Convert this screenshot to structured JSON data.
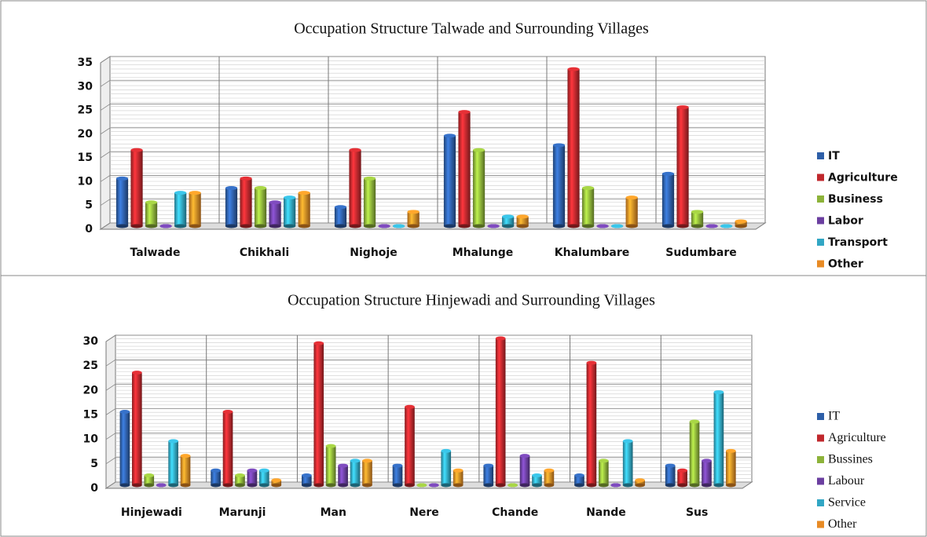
{
  "chart_data": [
    {
      "type": "bar",
      "title": "Occupation Structure Talwade and Surrounding Villages",
      "categories": [
        "Talwade",
        "Chikhali",
        "Nighoje",
        "Mhalunge",
        "Khalumbare",
        "Sudumbare"
      ],
      "series": [
        {
          "name": "IT",
          "color": "#2e5fa8",
          "values": [
            10,
            8,
            4,
            19,
            17,
            11
          ]
        },
        {
          "name": "Agriculture",
          "color": "#c0282d",
          "values": [
            16,
            10,
            16,
            24,
            33,
            25
          ]
        },
        {
          "name": "Business",
          "color": "#8db33a",
          "values": [
            5,
            8,
            10,
            16,
            8,
            3
          ]
        },
        {
          "name": "Labor",
          "color": "#6b3fa0",
          "values": [
            0,
            5,
            0,
            0,
            0,
            0
          ]
        },
        {
          "name": "Transport",
          "color": "#31a6c4",
          "values": [
            7,
            6,
            0,
            2,
            0,
            0
          ]
        },
        {
          "name": "Other",
          "color": "#e88b25",
          "values": [
            7,
            7,
            3,
            2,
            6,
            1
          ]
        }
      ],
      "ylim": [
        0,
        35
      ],
      "yticks": [
        0,
        5,
        10,
        15,
        20,
        25,
        30,
        35
      ],
      "grid": true,
      "legend": "right"
    },
    {
      "type": "bar",
      "title": "Occupation Structure Hinjewadi and Surrounding Villages",
      "categories": [
        "Hinjewadi",
        "Marunji",
        "Man",
        "Nere",
        "Chande",
        "Nande",
        "Sus"
      ],
      "series": [
        {
          "name": "IT",
          "color": "#2e5fa8",
          "values": [
            15,
            3,
            2,
            4,
            4,
            2,
            4
          ]
        },
        {
          "name": "Agriculture",
          "color": "#c0282d",
          "values": [
            23,
            15,
            29,
            16,
            30,
            25,
            3
          ]
        },
        {
          "name": "Bussines",
          "color": "#8db33a",
          "values": [
            2,
            2,
            8,
            0,
            0,
            5,
            13
          ]
        },
        {
          "name": "Labour",
          "color": "#6b3fa0",
          "values": [
            0,
            3,
            4,
            0,
            6,
            0,
            5
          ]
        },
        {
          "name": "Service",
          "color": "#31a6c4",
          "values": [
            9,
            3,
            5,
            7,
            2,
            9,
            19
          ]
        },
        {
          "name": "Other",
          "color": "#e88b25",
          "values": [
            6,
            1,
            5,
            3,
            3,
            1,
            7
          ]
        }
      ],
      "ylim": [
        0,
        30
      ],
      "yticks": [
        0,
        5,
        10,
        15,
        20,
        25,
        30
      ],
      "grid": true,
      "legend": "right"
    }
  ]
}
